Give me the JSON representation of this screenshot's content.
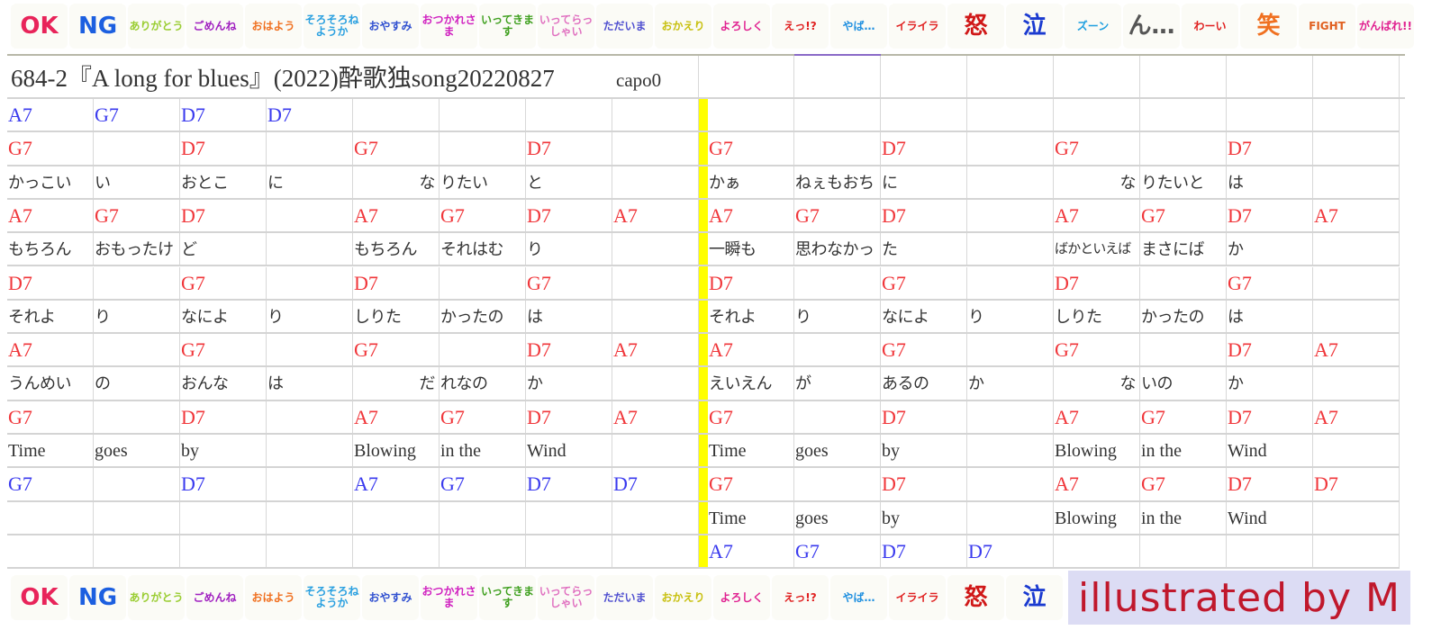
{
  "stickers_top": [
    {
      "text": "OK",
      "color": "#e8245a"
    },
    {
      "text": "NG",
      "color": "#1c5fe0"
    },
    {
      "text": "ありがとう",
      "color": "#9acd32"
    },
    {
      "text": "ごめんね",
      "color": "#a020c0"
    },
    {
      "text": "おはよう",
      "color": "#f07020"
    },
    {
      "text": "そろそろねようか",
      "color": "#2aa0e0"
    },
    {
      "text": "おやすみ",
      "color": "#3050d0"
    },
    {
      "text": "おつかれさま",
      "color": "#d020c0"
    },
    {
      "text": "いってきます",
      "color": "#40a020"
    },
    {
      "text": "いってらっしゃい",
      "color": "#e070c0"
    },
    {
      "text": "ただいま",
      "color": "#5050d0"
    },
    {
      "text": "おかえり",
      "color": "#c8c010"
    },
    {
      "text": "よろしく",
      "color": "#e02090"
    },
    {
      "text": "えっ!?",
      "color": "#e02020"
    },
    {
      "text": "やば…",
      "color": "#2090e0"
    },
    {
      "text": "イライラ",
      "color": "#e02020"
    },
    {
      "text": "怒",
      "color": "#d01818"
    },
    {
      "text": "泣",
      "color": "#1a3ad0"
    },
    {
      "text": "ズーン",
      "color": "#20a0e0"
    },
    {
      "text": "ん…",
      "color": "#555555"
    },
    {
      "text": "わーい",
      "color": "#e02020"
    },
    {
      "text": "笑",
      "color": "#f07020"
    },
    {
      "text": "FIGHT",
      "color": "#e06020"
    },
    {
      "text": "がんばれ!!",
      "color": "#e02090"
    }
  ],
  "stickers_bottom": [
    {
      "text": "OK",
      "color": "#e8245a"
    },
    {
      "text": "NG",
      "color": "#1c5fe0"
    },
    {
      "text": "ありがとう",
      "color": "#9acd32"
    },
    {
      "text": "ごめんね",
      "color": "#a020c0"
    },
    {
      "text": "おはよう",
      "color": "#f07020"
    },
    {
      "text": "そろそろねようか",
      "color": "#2aa0e0"
    },
    {
      "text": "おやすみ",
      "color": "#3050d0"
    },
    {
      "text": "おつかれさま",
      "color": "#d020c0"
    },
    {
      "text": "いってきます",
      "color": "#40a020"
    },
    {
      "text": "いってらっしゃい",
      "color": "#e070c0"
    },
    {
      "text": "ただいま",
      "color": "#5050d0"
    },
    {
      "text": "おかえり",
      "color": "#c8c010"
    },
    {
      "text": "よろしく",
      "color": "#e02090"
    },
    {
      "text": "えっ!?",
      "color": "#e02020"
    },
    {
      "text": "やば…",
      "color": "#2090e0"
    },
    {
      "text": "イライラ",
      "color": "#e02020"
    },
    {
      "text": "怒",
      "color": "#d01818"
    },
    {
      "text": "泣",
      "color": "#1a3ad0"
    }
  ],
  "credit": "illustrated by M",
  "sheet": {
    "title": "684-2『A long for blues』(2022)酔歌独song20220827",
    "capo": "capo0",
    "accent_colors": {
      "red": "#f0363a",
      "blue": "#3a3aee",
      "divider": "#ffff00"
    },
    "left_rows": [
      {
        "color": "blue",
        "cells": [
          "A7",
          "G7",
          "D7",
          "D7",
          "",
          "",
          "",
          ""
        ]
      },
      {
        "color": "red",
        "cells": [
          "G7",
          "",
          "D7",
          "",
          "G7",
          "",
          "D7",
          ""
        ]
      },
      {
        "color": "black",
        "cells": [
          "かっこい",
          "い",
          "おとこ",
          "に",
          "な",
          "りたい",
          "と",
          ""
        ]
      },
      {
        "color": "red",
        "cells": [
          "A7",
          "G7",
          "D7",
          "",
          "A7",
          "G7",
          "D7",
          "A7"
        ]
      },
      {
        "color": "black",
        "cells": [
          "もちろん",
          "おもったけ",
          "ど",
          "",
          "もちろん",
          "それはむ",
          "り",
          ""
        ]
      },
      {
        "color": "red",
        "cells": [
          "D7",
          "",
          "G7",
          "",
          "D7",
          "",
          "G7",
          ""
        ]
      },
      {
        "color": "black",
        "cells": [
          "それよ",
          "り",
          "なによ",
          "り",
          "しりた",
          "かったの",
          "は",
          ""
        ]
      },
      {
        "color": "red",
        "cells": [
          "A7",
          "",
          "G7",
          "",
          "G7",
          "",
          "D7",
          "A7"
        ]
      },
      {
        "color": "black",
        "cells": [
          "うんめい",
          "の",
          "おんな",
          "は",
          "だ",
          "れなの",
          "か",
          ""
        ]
      },
      {
        "color": "red",
        "cells": [
          "G7",
          "",
          "D7",
          "",
          "A7",
          "G7",
          "D7",
          "A7"
        ]
      },
      {
        "color": "black",
        "cells": [
          "Time",
          "goes",
          "by",
          "",
          "Blowing",
          "in the",
          "Wind",
          ""
        ]
      },
      {
        "color": "blue",
        "cells": [
          "G7",
          "",
          "D7",
          "",
          "A7",
          "G7",
          "D7",
          "D7"
        ]
      },
      {
        "color": "black",
        "cells": [
          "",
          "",
          "",
          "",
          "",
          "",
          "",
          ""
        ]
      },
      {
        "color": "black",
        "cells": [
          "",
          "",
          "",
          "",
          "",
          "",
          "",
          ""
        ]
      }
    ],
    "right_rows": [
      {
        "color": "black",
        "cells": [
          "",
          "",
          "",
          "",
          "",
          "",
          "",
          ""
        ]
      },
      {
        "color": "red",
        "cells": [
          "G7",
          "",
          "D7",
          "",
          "G7",
          "",
          "D7",
          ""
        ]
      },
      {
        "color": "black",
        "cells": [
          "かぁ",
          "ねぇもおち",
          "に",
          "",
          "な",
          "りたいと",
          "は",
          ""
        ]
      },
      {
        "color": "red",
        "cells": [
          "A7",
          "G7",
          "D7",
          "",
          "A7",
          "G7",
          "D7",
          "A7"
        ]
      },
      {
        "color": "black",
        "cells": [
          "一瞬も",
          "思わなかっ",
          "た",
          "",
          "ばかといえば",
          "まさにば",
          "か",
          ""
        ]
      },
      {
        "color": "red",
        "cells": [
          "D7",
          "",
          "G7",
          "",
          "D7",
          "",
          "G7",
          ""
        ]
      },
      {
        "color": "black",
        "cells": [
          "それよ",
          "り",
          "なによ",
          "り",
          "しりた",
          "かったの",
          "は",
          ""
        ]
      },
      {
        "color": "red",
        "cells": [
          "A7",
          "",
          "G7",
          "",
          "G7",
          "",
          "D7",
          "A7"
        ]
      },
      {
        "color": "black",
        "cells": [
          "えいえん",
          "が",
          "あるの",
          "か",
          "な",
          "いの",
          "か",
          ""
        ]
      },
      {
        "color": "red",
        "cells": [
          "G7",
          "",
          "D7",
          "",
          "A7",
          "G7",
          "D7",
          "A7"
        ]
      },
      {
        "color": "black",
        "cells": [
          "Time",
          "goes",
          "by",
          "",
          "Blowing",
          "in the",
          "Wind",
          ""
        ]
      },
      {
        "color": "red",
        "cells": [
          "G7",
          "",
          "D7",
          "",
          "A7",
          "G7",
          "D7",
          "D7"
        ]
      },
      {
        "color": "black",
        "cells": [
          "Time",
          "goes",
          "by",
          "",
          "Blowing",
          "in the",
          "Wind",
          ""
        ]
      },
      {
        "color": "blue",
        "cells": [
          "A7",
          "G7",
          "D7",
          "D7",
          "",
          "",
          "",
          ""
        ]
      }
    ]
  }
}
